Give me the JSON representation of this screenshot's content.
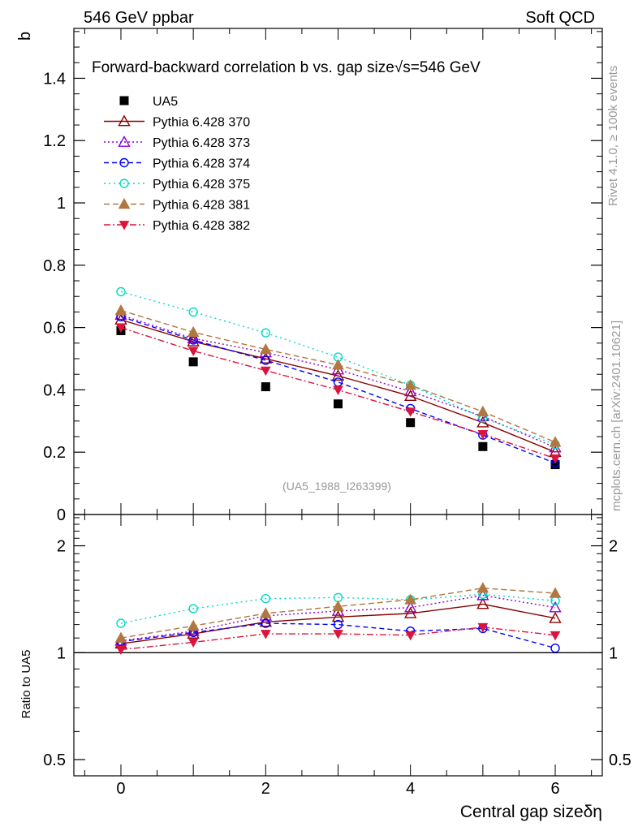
{
  "header": {
    "left": "546 GeV ppbar",
    "right": "Soft QCD"
  },
  "side": {
    "rivet": "Rivet 4.1.0, ≥ 100k events",
    "mcplots": "mcplots.cern.ch [arXiv:2401.10621]"
  },
  "colors": {
    "data": "#000000",
    "p370": "#8b0000",
    "p373": "#9400d3",
    "p374": "#0000ff",
    "p375": "#00d8c4",
    "p381": "#b07840",
    "p382": "#dc143c"
  },
  "chart_data": [
    {
      "type": "scatter",
      "panel": "main",
      "title": "Forward-backward correlation b  vs. gap size",
      "title_extra": "√s=546 GeV",
      "ylabel": "b",
      "xlabel": "",
      "xlim": [
        -0.65,
        6.65
      ],
      "ylim": [
        0,
        1.56
      ],
      "yticks": [
        0,
        0.2,
        0.4,
        0.6,
        0.8,
        1,
        1.2,
        1.4
      ],
      "ytick_labels": [
        "0",
        "0.2",
        "0.4",
        "0.6",
        "0.8",
        "1",
        "1.2",
        "1.4"
      ],
      "watermark": "(UA5_1988_I263399)",
      "legend_position": "top-left",
      "x": [
        0,
        1,
        2,
        3,
        4,
        5,
        6
      ],
      "series": [
        {
          "name": "UA5",
          "key": "data",
          "values": [
            0.59,
            0.49,
            0.41,
            0.355,
            0.295,
            0.218,
            0.16
          ]
        },
        {
          "name": "Pythia 6.428 370",
          "key": "p370",
          "values": [
            0.625,
            0.555,
            0.5,
            0.445,
            0.38,
            0.295,
            0.2
          ]
        },
        {
          "name": "Pythia 6.428 373",
          "key": "p373",
          "values": [
            0.64,
            0.565,
            0.52,
            0.465,
            0.395,
            0.315,
            0.215
          ]
        },
        {
          "name": "Pythia 6.428 374",
          "key": "p374",
          "values": [
            0.635,
            0.56,
            0.495,
            0.425,
            0.34,
            0.255,
            0.165
          ]
        },
        {
          "name": "Pythia 6.428 375",
          "key": "p375",
          "values": [
            0.715,
            0.65,
            0.583,
            0.505,
            0.415,
            0.31,
            0.225
          ]
        },
        {
          "name": "Pythia 6.428 381",
          "key": "p381",
          "values": [
            0.655,
            0.585,
            0.53,
            0.48,
            0.415,
            0.33,
            0.232
          ]
        },
        {
          "name": "Pythia 6.428 382",
          "key": "p382",
          "values": [
            0.6,
            0.525,
            0.462,
            0.4,
            0.33,
            0.258,
            0.18
          ]
        }
      ]
    },
    {
      "type": "line",
      "panel": "ratio",
      "ylabel": "Ratio to UA5",
      "xlabel": "Central gap sizeδη",
      "xlim": [
        -0.65,
        6.65
      ],
      "ylim": [
        0.45,
        2.45
      ],
      "yscale": "log",
      "yticks": [
        0.5,
        1,
        2
      ],
      "ytick_labels": [
        "0.5",
        "1",
        "2"
      ],
      "xticks": [
        0,
        2,
        4,
        6
      ],
      "xtick_labels": [
        "0",
        "2",
        "4",
        "6"
      ],
      "x": [
        0,
        1,
        2,
        3,
        4,
        5,
        6
      ],
      "series": [
        {
          "name": "Pythia 6.428 370",
          "key": "p370",
          "values": [
            1.06,
            1.13,
            1.22,
            1.26,
            1.29,
            1.37,
            1.25
          ]
        },
        {
          "name": "Pythia 6.428 373",
          "key": "p373",
          "values": [
            1.08,
            1.15,
            1.27,
            1.31,
            1.34,
            1.45,
            1.34
          ]
        },
        {
          "name": "Pythia 6.428 374",
          "key": "p374",
          "values": [
            1.075,
            1.14,
            1.21,
            1.2,
            1.15,
            1.17,
            1.03
          ]
        },
        {
          "name": "Pythia 6.428 375",
          "key": "p375",
          "values": [
            1.21,
            1.33,
            1.42,
            1.43,
            1.41,
            1.46,
            1.4
          ]
        },
        {
          "name": "Pythia 6.428 381",
          "key": "p381",
          "values": [
            1.1,
            1.19,
            1.29,
            1.35,
            1.41,
            1.52,
            1.47
          ]
        },
        {
          "name": "Pythia 6.428 382",
          "key": "p382",
          "values": [
            1.02,
            1.07,
            1.13,
            1.13,
            1.12,
            1.18,
            1.12
          ]
        }
      ]
    }
  ]
}
